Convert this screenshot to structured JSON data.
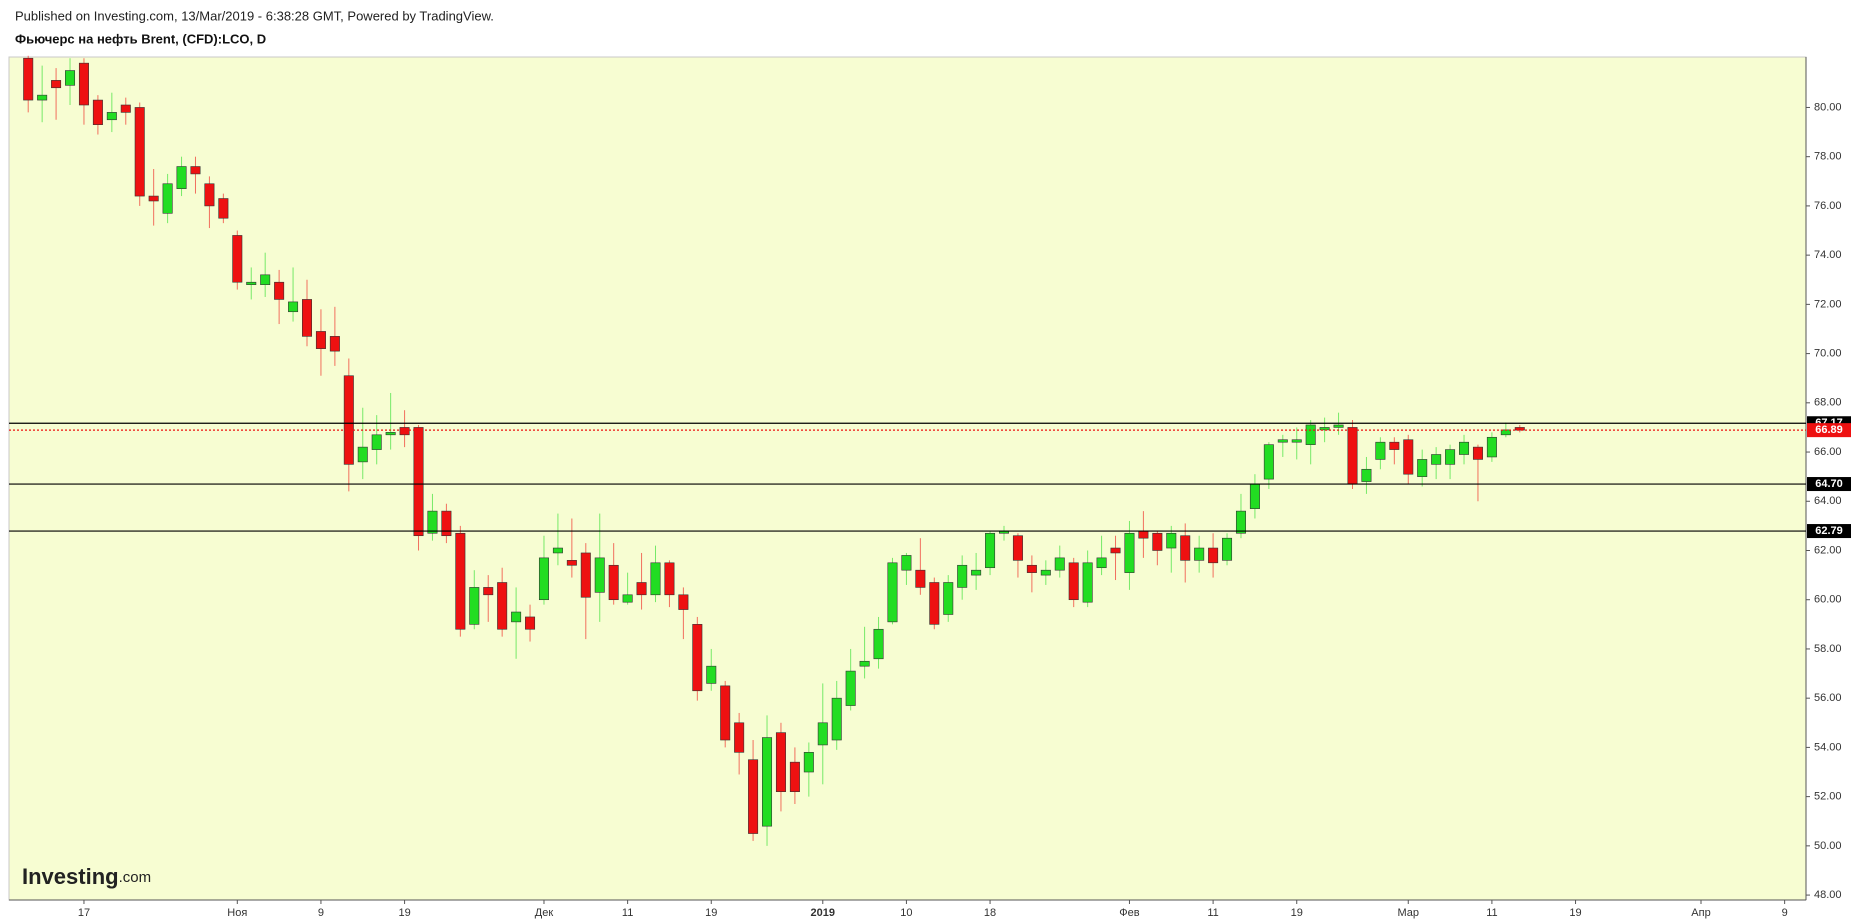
{
  "header": "Published on Investing.com, 13/Mar/2019 - 6:38:28 GMT, Powered by TradingView.",
  "chart_data": {
    "type": "candlestick",
    "title": "Фьючерс на нефть Brent, (CFD):LCO, D",
    "watermark": {
      "brand": "Investing",
      "suffix": ".com"
    },
    "up_color": "#22dd22",
    "down_color": "#ee1111",
    "background": "#f7fdd2",
    "ylim": [
      47.8,
      82.05
    ],
    "yticks": [
      {
        "value": 48,
        "label": "48.00"
      },
      {
        "value": 50,
        "label": "50.00"
      },
      {
        "value": 52,
        "label": "52.00"
      },
      {
        "value": 54,
        "label": "54.00"
      },
      {
        "value": 56,
        "label": "56.00"
      },
      {
        "value": 58,
        "label": "58.00"
      },
      {
        "value": 60,
        "label": "60.00"
      },
      {
        "value": 62,
        "label": "62.00"
      },
      {
        "value": 64,
        "label": "64.00"
      },
      {
        "value": 66,
        "label": "66.00"
      },
      {
        "value": 68,
        "label": "68.00"
      },
      {
        "value": 70,
        "label": "70.00"
      },
      {
        "value": 72,
        "label": "72.00"
      },
      {
        "value": 74,
        "label": "74.00"
      },
      {
        "value": 76,
        "label": "76.00"
      },
      {
        "value": 78,
        "label": "78.00"
      },
      {
        "value": 80,
        "label": "80.00"
      }
    ],
    "levels": [
      {
        "value": 67.17,
        "label": "67.17",
        "color": "#000000"
      },
      {
        "value": 66.89,
        "label": "66.89",
        "color": "#ee1111",
        "dotted": true
      },
      {
        "value": 64.7,
        "label": "64.70",
        "color": "#000000"
      },
      {
        "value": 62.79,
        "label": "62.79",
        "color": "#000000"
      }
    ],
    "categories": [
      null,
      null,
      null,
      null,
      "17",
      null,
      null,
      null,
      null,
      null,
      null,
      null,
      null,
      null,
      null,
      "Ноя",
      null,
      null,
      null,
      null,
      null,
      "9",
      null,
      null,
      null,
      null,
      null,
      "19",
      null,
      null,
      null,
      null,
      null,
      null,
      null,
      null,
      null,
      "Дек",
      null,
      null,
      null,
      null,
      null,
      "11",
      null,
      null,
      null,
      null,
      null,
      "19",
      null,
      null,
      null,
      null,
      null,
      null,
      null,
      "2019",
      null,
      null,
      null,
      null,
      null,
      "10",
      null,
      null,
      null,
      null,
      null,
      "18",
      null,
      null,
      null,
      null,
      null,
      null,
      null,
      null,
      null,
      "Фев",
      null,
      null,
      null,
      null,
      null,
      "11",
      null,
      null,
      null,
      null,
      null,
      "19",
      null,
      null,
      null,
      null,
      null,
      null,
      null,
      "Мар",
      null,
      null,
      null,
      null,
      null,
      "11",
      null,
      null,
      null,
      null,
      null,
      "19",
      null,
      null,
      null,
      null,
      null,
      null,
      null,
      null,
      "Апр",
      null,
      null,
      null,
      null,
      null,
      "9",
      null
    ],
    "open": [
      82.0,
      80.3,
      81.1,
      80.9,
      81.8,
      80.3,
      79.5,
      80.1,
      80.0,
      76.4,
      75.7,
      76.7,
      77.6,
      76.9,
      76.3,
      74.8,
      72.8,
      72.8,
      72.9,
      71.7,
      72.2,
      70.9,
      70.7,
      69.1,
      65.6,
      66.1,
      66.7,
      67.0,
      67.0,
      62.7,
      63.6,
      62.7,
      59.0,
      60.5,
      60.7,
      59.1,
      59.3,
      60.0,
      61.9,
      61.6,
      61.9,
      60.3,
      61.4,
      59.9,
      60.7,
      60.2,
      61.5,
      60.2,
      59.0,
      56.6,
      56.5,
      55.0,
      53.5,
      50.8,
      54.6,
      53.4,
      53.0,
      54.1,
      54.3,
      55.7,
      57.3,
      57.6,
      59.1,
      61.2,
      61.2,
      60.7,
      59.4,
      60.5,
      61.0,
      61.3,
      62.7,
      62.6,
      61.4,
      61.0,
      61.2,
      61.5,
      59.9,
      61.3,
      62.1,
      61.1,
      62.8,
      62.7,
      62.1,
      62.6,
      61.6,
      62.1,
      61.6,
      62.7,
      63.7,
      64.9,
      66.4,
      66.4,
      66.3,
      66.9,
      67.0,
      67.0,
      64.8,
      65.7,
      66.4,
      66.5,
      65.0,
      65.5,
      65.5,
      65.9,
      66.2,
      65.8,
      66.7,
      67.0,
      null,
      null,
      null,
      null,
      null,
      null,
      null,
      null,
      null,
      null,
      null,
      null,
      null,
      null,
      null,
      null,
      null,
      null,
      null,
      null
    ],
    "high": [
      82.1,
      81.7,
      81.6,
      82.0,
      82.0,
      80.5,
      80.6,
      80.4,
      80.2,
      77.5,
      77.3,
      78.0,
      78.0,
      77.2,
      76.5,
      75.0,
      73.5,
      74.1,
      73.4,
      73.5,
      73.0,
      71.8,
      71.9,
      69.8,
      67.8,
      67.5,
      68.4,
      67.7,
      67.1,
      64.3,
      63.9,
      63.0,
      61.2,
      61.0,
      61.3,
      60.5,
      59.8,
      62.6,
      63.5,
      63.3,
      62.3,
      63.5,
      62.3,
      61.1,
      61.9,
      62.2,
      61.6,
      60.5,
      59.3,
      58.0,
      56.7,
      55.4,
      54.3,
      55.3,
      55.0,
      54.0,
      54.2,
      56.6,
      56.7,
      58.0,
      58.9,
      59.3,
      61.7,
      61.9,
      62.5,
      60.9,
      61.0,
      61.8,
      61.9,
      62.8,
      63.0,
      62.7,
      61.8,
      61.6,
      62.2,
      61.7,
      62.0,
      62.6,
      62.6,
      63.2,
      63.6,
      62.8,
      63.0,
      63.1,
      62.6,
      62.7,
      62.7,
      64.3,
      65.1,
      66.4,
      66.7,
      67.0,
      67.3,
      67.4,
      67.6,
      67.3,
      65.8,
      66.6,
      66.6,
      66.7,
      66.1,
      66.2,
      66.3,
      66.7,
      66.3,
      66.8,
      67.2,
      67.1,
      null,
      null,
      null,
      null,
      null,
      null,
      null,
      null,
      null,
      null,
      null,
      null,
      null,
      null,
      null,
      null,
      null,
      null,
      null,
      null
    ],
    "low": [
      79.8,
      79.4,
      79.5,
      80.1,
      79.3,
      78.9,
      79.0,
      79.3,
      76.0,
      75.2,
      75.3,
      76.4,
      76.5,
      75.1,
      75.3,
      72.6,
      72.2,
      72.3,
      71.2,
      71.3,
      70.3,
      69.1,
      69.5,
      64.4,
      64.9,
      65.5,
      66.1,
      66.2,
      62.0,
      62.4,
      62.3,
      58.5,
      58.8,
      59.1,
      58.5,
      57.6,
      58.3,
      59.8,
      61.4,
      60.9,
      58.4,
      59.1,
      59.8,
      59.8,
      59.6,
      59.9,
      59.7,
      58.4,
      55.9,
      56.3,
      54.0,
      52.9,
      50.2,
      50.0,
      51.4,
      51.7,
      52.0,
      52.5,
      53.9,
      55.5,
      56.8,
      57.2,
      59.0,
      60.6,
      60.2,
      58.8,
      59.1,
      60.0,
      60.4,
      61.0,
      62.4,
      60.9,
      60.3,
      60.6,
      60.9,
      59.7,
      59.7,
      61.0,
      60.8,
      60.4,
      61.7,
      61.4,
      61.1,
      60.7,
      61.1,
      60.9,
      61.4,
      62.5,
      63.3,
      64.5,
      65.8,
      65.7,
      65.5,
      66.4,
      66.7,
      64.5,
      64.3,
      65.3,
      65.5,
      64.7,
      64.6,
      64.9,
      64.9,
      65.5,
      64.0,
      65.6,
      66.6,
      66.8,
      null,
      null,
      null,
      null,
      null,
      null,
      null,
      null,
      null,
      null,
      null,
      null,
      null,
      null,
      null,
      null,
      null,
      null,
      null,
      null
    ],
    "close": [
      80.3,
      80.5,
      80.8,
      81.5,
      80.1,
      79.3,
      79.8,
      79.8,
      76.4,
      76.2,
      76.9,
      77.6,
      77.3,
      76.0,
      75.5,
      72.9,
      72.9,
      73.2,
      72.2,
      72.1,
      70.7,
      70.2,
      70.1,
      65.5,
      66.2,
      66.7,
      66.8,
      66.7,
      62.6,
      63.6,
      62.6,
      58.8,
      60.5,
      60.2,
      58.8,
      59.5,
      58.8,
      61.7,
      62.1,
      61.4,
      60.1,
      61.7,
      60.0,
      60.2,
      60.2,
      61.5,
      60.2,
      59.6,
      56.3,
      57.3,
      54.3,
      53.8,
      50.5,
      54.4,
      52.2,
      52.2,
      53.8,
      55.0,
      56.0,
      57.1,
      57.5,
      58.8,
      61.5,
      61.8,
      60.5,
      59.0,
      60.7,
      61.4,
      61.2,
      62.7,
      62.8,
      61.6,
      61.1,
      61.2,
      61.7,
      60.0,
      61.5,
      61.7,
      61.9,
      62.7,
      62.5,
      62.0,
      62.7,
      61.6,
      62.1,
      61.5,
      62.5,
      63.6,
      64.7,
      66.3,
      66.5,
      66.5,
      67.1,
      67.0,
      67.1,
      64.7,
      65.3,
      66.4,
      66.1,
      65.1,
      65.7,
      65.9,
      66.1,
      66.4,
      65.7,
      66.6,
      66.9,
      66.89,
      null,
      null,
      null,
      null,
      null,
      null,
      null,
      null,
      null,
      null,
      null,
      null,
      null,
      null,
      null,
      null,
      null,
      null,
      null,
      null
    ]
  }
}
